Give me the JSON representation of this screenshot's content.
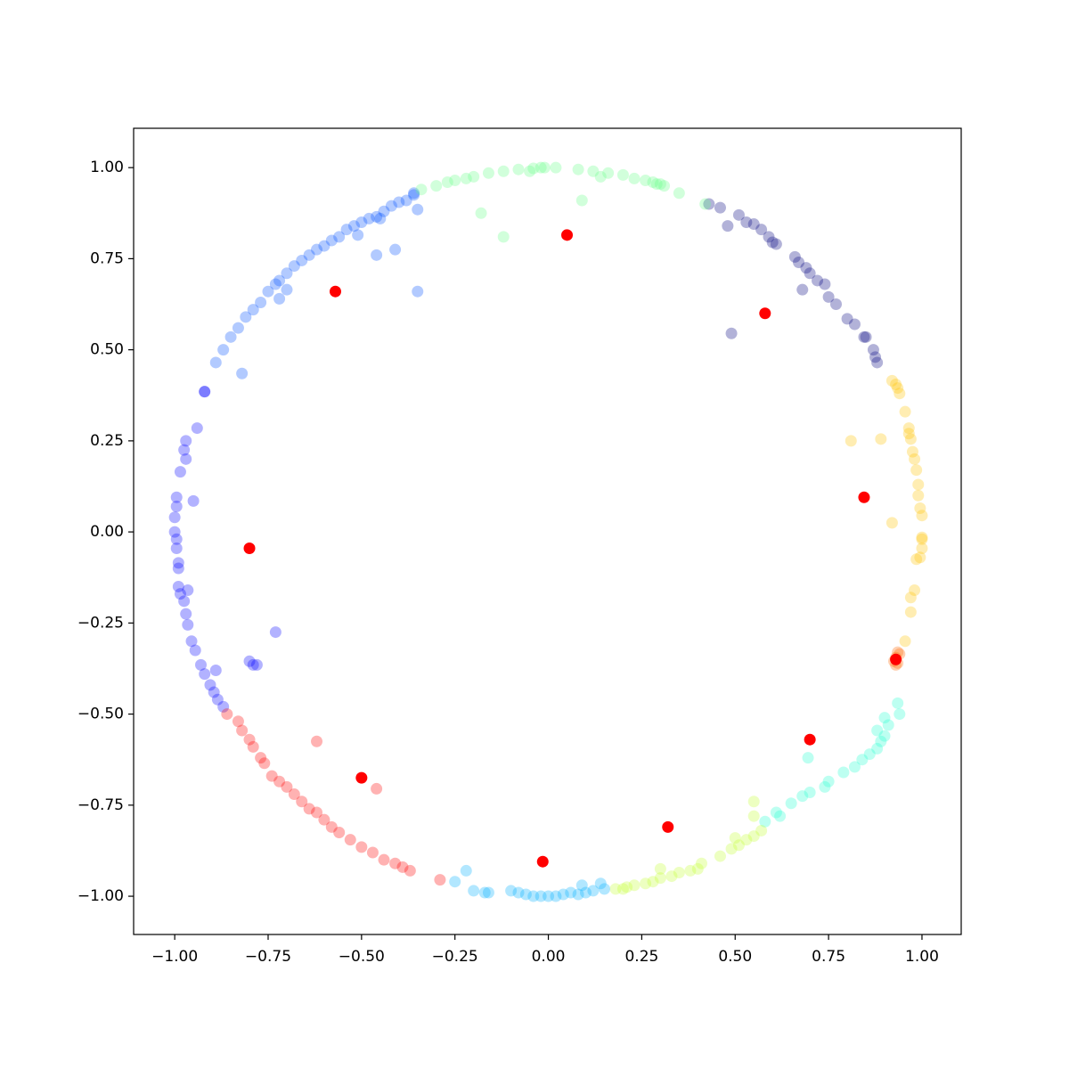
{
  "chart_data": {
    "type": "scatter",
    "xlim": [
      -1.11,
      1.105
    ],
    "ylim": [
      -1.105,
      1.108
    ],
    "xticks": [
      {
        "value": -1,
        "label": "−1.00"
      },
      {
        "value": -0.75,
        "label": "−0.75"
      },
      {
        "value": -0.5,
        "label": "−0.50"
      },
      {
        "value": -0.25,
        "label": "−0.25"
      },
      {
        "value": 0,
        "label": "0.00"
      },
      {
        "value": 0.25,
        "label": "0.25"
      },
      {
        "value": 0.5,
        "label": "0.50"
      },
      {
        "value": 0.75,
        "label": "0.75"
      },
      {
        "value": 1,
        "label": "1.00"
      }
    ],
    "yticks": [
      {
        "value": -1,
        "label": "−1.00"
      },
      {
        "value": -0.75,
        "label": "−0.75"
      },
      {
        "value": -0.5,
        "label": "−0.50"
      },
      {
        "value": -0.25,
        "label": "−0.25"
      },
      {
        "value": 0,
        "label": "0.00"
      },
      {
        "value": 0.25,
        "label": "0.25"
      },
      {
        "value": 0.5,
        "label": "0.50"
      },
      {
        "value": 0.75,
        "label": "0.75"
      },
      {
        "value": 1,
        "label": "1.00"
      }
    ],
    "grid": false,
    "series": [
      {
        "color": "#00007f",
        "alpha": 0.3,
        "x": [
          0.43,
          0.46,
          0.48,
          0.51,
          0.53,
          0.55,
          0.57,
          0.59,
          0.6,
          0.61,
          0.66,
          0.67,
          0.69,
          0.7,
          0.72,
          0.74,
          0.75,
          0.77,
          0.8,
          0.82,
          0.845,
          0.85,
          0.87,
          0.875,
          0.88,
          0.68,
          0.49
        ],
        "y": [
          0.9,
          0.89,
          0.84,
          0.87,
          0.85,
          0.845,
          0.83,
          0.81,
          0.795,
          0.79,
          0.755,
          0.74,
          0.725,
          0.71,
          0.69,
          0.68,
          0.645,
          0.625,
          0.585,
          0.57,
          0.535,
          0.535,
          0.5,
          0.48,
          0.465,
          0.665,
          0.545
        ]
      },
      {
        "color": "#0000ff",
        "alpha": 0.3,
        "x": [
          -0.92,
          -0.92,
          -0.94,
          -0.97,
          -0.975,
          -0.97,
          -0.985,
          -0.95,
          -0.995,
          -0.995,
          -1.0,
          -1.0,
          -0.995,
          -0.995,
          -0.99,
          -0.99,
          -0.99,
          -0.985,
          -0.975,
          -0.97,
          -0.965,
          -0.965,
          -0.955,
          -0.945,
          -0.93,
          -0.92,
          -0.89,
          -0.905,
          -0.895,
          -0.885,
          -0.87,
          -0.8,
          -0.79,
          -0.78,
          -0.73
        ],
        "y": [
          0.385,
          0.385,
          0.285,
          0.25,
          0.225,
          0.2,
          0.165,
          0.085,
          0.095,
          0.07,
          0.04,
          0.0,
          -0.02,
          -0.045,
          -0.085,
          -0.1,
          -0.15,
          -0.17,
          -0.19,
          -0.225,
          -0.16,
          -0.255,
          -0.3,
          -0.325,
          -0.365,
          -0.39,
          -0.38,
          -0.42,
          -0.44,
          -0.46,
          -0.48,
          -0.355,
          -0.365,
          -0.365,
          -0.275
        ]
      },
      {
        "color": "#0050ff",
        "alpha": 0.3,
        "x": [
          -0.36,
          -0.36,
          -0.35,
          -0.38,
          -0.4,
          -0.42,
          -0.44,
          -0.46,
          -0.48,
          -0.5,
          -0.52,
          -0.54,
          -0.56,
          -0.58,
          -0.6,
          -0.62,
          -0.64,
          -0.66,
          -0.68,
          -0.7,
          -0.72,
          -0.73,
          -0.75,
          -0.77,
          -0.79,
          -0.81,
          -0.83,
          -0.85,
          -0.87,
          -0.89,
          -0.82,
          -0.51,
          -0.46,
          -0.45,
          -0.41,
          -0.35,
          -0.7,
          -0.72
        ],
        "y": [
          0.93,
          0.925,
          0.885,
          0.91,
          0.905,
          0.895,
          0.88,
          0.865,
          0.86,
          0.85,
          0.84,
          0.83,
          0.81,
          0.8,
          0.785,
          0.775,
          0.76,
          0.745,
          0.73,
          0.71,
          0.69,
          0.68,
          0.66,
          0.63,
          0.61,
          0.59,
          0.56,
          0.535,
          0.5,
          0.465,
          0.435,
          0.815,
          0.76,
          0.86,
          0.775,
          0.66,
          0.665,
          0.64
        ]
      },
      {
        "color": "#66ff88",
        "alpha": 0.3,
        "x": [
          -0.34,
          -0.3,
          -0.25,
          -0.2,
          -0.16,
          -0.12,
          -0.08,
          -0.04,
          -0.02,
          -0.01,
          0.02,
          0.08,
          0.12,
          0.16,
          0.2,
          0.23,
          0.26,
          0.28,
          0.29,
          0.3,
          0.31,
          0.35,
          0.42,
          -0.18,
          -0.12,
          0.09,
          -0.27,
          -0.22,
          0.14,
          -0.05
        ],
        "y": [
          0.94,
          0.95,
          0.965,
          0.975,
          0.985,
          0.99,
          0.995,
          0.998,
          1.0,
          1.0,
          1.0,
          0.995,
          0.99,
          0.985,
          0.98,
          0.97,
          0.965,
          0.96,
          0.955,
          0.955,
          0.95,
          0.93,
          0.9,
          0.875,
          0.81,
          0.91,
          0.96,
          0.97,
          0.975,
          0.99
        ]
      },
      {
        "color": "#ffc400",
        "alpha": 0.3,
        "x": [
          0.92,
          0.93,
          0.935,
          0.94,
          0.955,
          0.965,
          0.965,
          0.97,
          0.975,
          0.98,
          0.985,
          0.99,
          0.99,
          0.995,
          1.0,
          1.0,
          1.0,
          1.0,
          0.995,
          0.985,
          0.98,
          0.97,
          0.97,
          0.955,
          0.81,
          0.89,
          0.92
        ],
        "y": [
          0.415,
          0.405,
          0.395,
          0.38,
          0.33,
          0.285,
          0.27,
          0.255,
          0.22,
          0.2,
          0.17,
          0.13,
          0.1,
          0.065,
          0.045,
          -0.015,
          -0.02,
          -0.045,
          -0.07,
          -0.075,
          -0.16,
          -0.18,
          -0.22,
          -0.3,
          0.25,
          0.255,
          0.025
        ]
      },
      {
        "color": "#ff6800",
        "alpha": 0.3,
        "x": [
          0.935,
          0.94,
          0.93,
          0.925,
          0.93,
          0.935
        ],
        "y": [
          -0.33,
          -0.335,
          -0.345,
          -0.355,
          -0.365,
          -0.36
        ]
      },
      {
        "color": "#26ffd0",
        "alpha": 0.3,
        "x": [
          0.935,
          0.94,
          0.91,
          0.9,
          0.89,
          0.88,
          0.86,
          0.84,
          0.82,
          0.79,
          0.75,
          0.74,
          0.7,
          0.68,
          0.65,
          0.61,
          0.62,
          0.58,
          0.695,
          0.88,
          0.9
        ],
        "y": [
          -0.47,
          -0.5,
          -0.53,
          -0.56,
          -0.575,
          -0.595,
          -0.61,
          -0.625,
          -0.645,
          -0.66,
          -0.685,
          -0.7,
          -0.715,
          -0.725,
          -0.745,
          -0.77,
          -0.78,
          -0.795,
          -0.62,
          -0.545,
          -0.51
        ]
      },
      {
        "color": "#c4ff33",
        "alpha": 0.3,
        "x": [
          0.57,
          0.55,
          0.53,
          0.51,
          0.49,
          0.46,
          0.41,
          0.4,
          0.38,
          0.35,
          0.33,
          0.3,
          0.28,
          0.26,
          0.23,
          0.21,
          0.2,
          0.18,
          0.55,
          0.55,
          0.5,
          0.3
        ],
        "y": [
          -0.82,
          -0.835,
          -0.845,
          -0.86,
          -0.87,
          -0.89,
          -0.91,
          -0.925,
          -0.93,
          -0.935,
          -0.945,
          -0.95,
          -0.96,
          -0.965,
          -0.97,
          -0.975,
          -0.98,
          -0.98,
          -0.74,
          -0.78,
          -0.84,
          -0.925
        ]
      },
      {
        "color": "#00b0ff",
        "alpha": 0.3,
        "x": [
          -0.25,
          -0.22,
          -0.2,
          -0.17,
          -0.16,
          -0.1,
          -0.08,
          -0.06,
          -0.04,
          -0.02,
          0.0,
          0.02,
          0.04,
          0.06,
          0.08,
          0.1,
          0.12,
          0.15,
          0.09,
          0.14
        ],
        "y": [
          -0.96,
          -0.93,
          -0.985,
          -0.99,
          -0.99,
          -0.985,
          -0.99,
          -0.995,
          -1.0,
          -1.0,
          -1.0,
          -1.0,
          -0.995,
          -0.99,
          -0.995,
          -0.99,
          -0.985,
          -0.98,
          -0.97,
          -0.965
        ]
      },
      {
        "color": "#ff0000",
        "alpha": 0.3,
        "x": [
          -0.86,
          -0.83,
          -0.82,
          -0.8,
          -0.79,
          -0.77,
          -0.76,
          -0.74,
          -0.72,
          -0.7,
          -0.68,
          -0.66,
          -0.64,
          -0.62,
          -0.6,
          -0.58,
          -0.56,
          -0.53,
          -0.5,
          -0.47,
          -0.44,
          -0.41,
          -0.39,
          -0.37,
          -0.29,
          -0.62,
          -0.46
        ],
        "y": [
          -0.5,
          -0.52,
          -0.545,
          -0.57,
          -0.59,
          -0.62,
          -0.635,
          -0.67,
          -0.685,
          -0.7,
          -0.72,
          -0.74,
          -0.76,
          -0.77,
          -0.79,
          -0.81,
          -0.825,
          -0.845,
          -0.865,
          -0.88,
          -0.9,
          -0.91,
          -0.92,
          -0.93,
          -0.955,
          -0.575,
          -0.705
        ]
      },
      {
        "color": "#ff0000",
        "alpha": 1,
        "x": [
          0.05,
          -0.57,
          0.58,
          0.845,
          -0.8,
          0.93,
          0.7,
          -0.5,
          0.32,
          -0.015
        ],
        "y": [
          0.815,
          0.66,
          0.6,
          0.095,
          -0.045,
          -0.35,
          -0.57,
          -0.675,
          -0.81,
          -0.905
        ]
      }
    ]
  }
}
